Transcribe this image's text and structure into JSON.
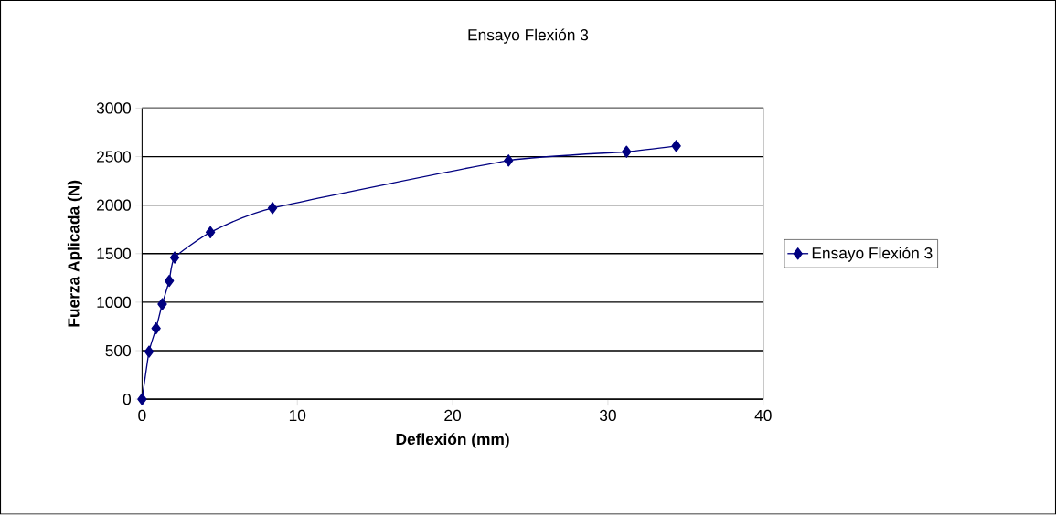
{
  "chart_data": {
    "type": "line",
    "title": "Ensayo Flexión 3",
    "xlabel": "Deflexión (mm)",
    "ylabel": "Fuerza Aplicada (N)",
    "x": [
      0,
      0.45,
      0.9,
      1.3,
      1.75,
      2.1,
      4.4,
      8.4,
      23.6,
      31.2,
      34.4
    ],
    "series": [
      {
        "name": "Ensayo Flexión 3",
        "color": "#000080",
        "values": [
          0,
          490,
          730,
          980,
          1220,
          1460,
          1720,
          1970,
          2460,
          2550,
          2610
        ]
      }
    ],
    "xlim": [
      0,
      40
    ],
    "xticks": [
      0,
      10,
      20,
      30,
      40
    ],
    "ylim": [
      0,
      3000
    ],
    "yticks": [
      0,
      500,
      1000,
      1500,
      2000,
      2500,
      3000
    ],
    "grid": "y",
    "legend": "right",
    "marker": "diamond",
    "line_style": "solid"
  }
}
